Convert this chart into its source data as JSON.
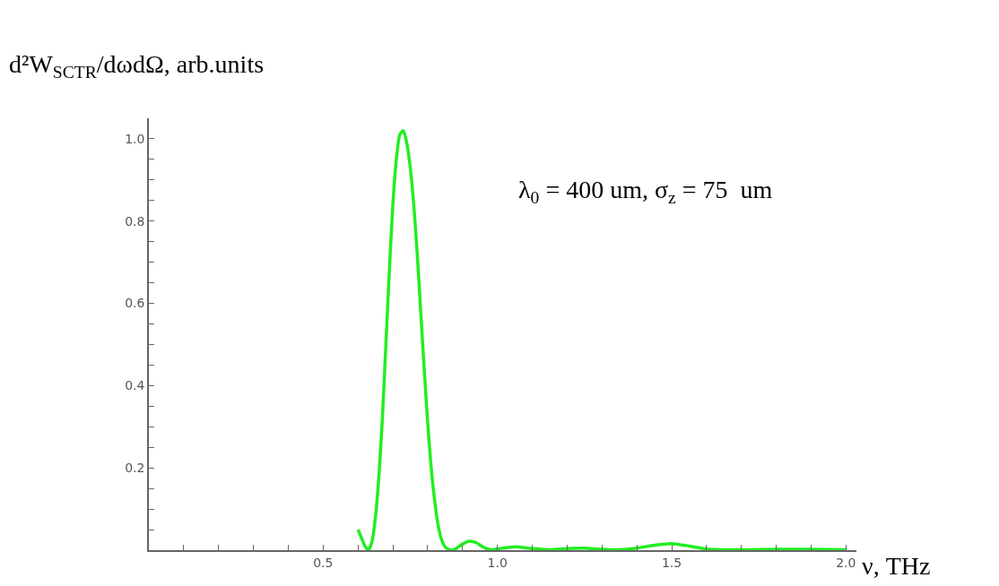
{
  "chart_data": {
    "type": "line",
    "xlabel": "ν, THz",
    "ylabel": "d²W$_{SCTR}$/dωdΩ, arb.units",
    "annotations": [
      "λ$_{0}$ = 400 um, σ$_{z}$ = 75  um"
    ],
    "series": [
      {
        "color": "#22ee22",
        "x": [
          0.6,
          0.61,
          0.62,
          0.63,
          0.64,
          0.65,
          0.66,
          0.67,
          0.68,
          0.69,
          0.7,
          0.71,
          0.72,
          0.73,
          0.74,
          0.75,
          0.76,
          0.77,
          0.78,
          0.79,
          0.8,
          0.81,
          0.82,
          0.83,
          0.84,
          0.85,
          0.86,
          0.87,
          0.88,
          0.9,
          0.92,
          0.94,
          0.96,
          0.98,
          1.0,
          1.05,
          1.1,
          1.15,
          1.2,
          1.25,
          1.3,
          1.35,
          1.4,
          1.45,
          1.5,
          1.55,
          1.6,
          1.7,
          1.8,
          1.9,
          2.0
        ],
        "values": [
          0.05,
          0.03,
          0.01,
          0.0,
          0.02,
          0.08,
          0.18,
          0.32,
          0.5,
          0.68,
          0.84,
          0.95,
          1.01,
          1.02,
          0.99,
          0.93,
          0.84,
          0.72,
          0.58,
          0.44,
          0.31,
          0.2,
          0.12,
          0.06,
          0.025,
          0.008,
          0.002,
          0.0,
          0.003,
          0.015,
          0.022,
          0.018,
          0.007,
          0.001,
          0.003,
          0.008,
          0.004,
          0.001,
          0.004,
          0.005,
          0.002,
          0.001,
          0.005,
          0.012,
          0.016,
          0.01,
          0.003,
          0.001,
          0.002,
          0.002,
          0.001
        ]
      }
    ],
    "xlim": [
      0,
      2.03
    ],
    "ylim": [
      0,
      1.05
    ],
    "xticks": [
      {
        "value": 0.1,
        "label": null
      },
      {
        "value": 0.2,
        "label": null
      },
      {
        "value": 0.3,
        "label": null
      },
      {
        "value": 0.4,
        "label": null
      },
      0.5,
      {
        "value": 0.6,
        "label": null
      },
      {
        "value": 0.7,
        "label": null
      },
      {
        "value": 0.8,
        "label": null
      },
      {
        "value": 0.9,
        "label": null
      },
      {
        "value": 1.0,
        "label": "1.0"
      },
      {
        "value": 1.1,
        "label": null
      },
      {
        "value": 1.2,
        "label": null
      },
      {
        "value": 1.3,
        "label": null
      },
      {
        "value": 1.4,
        "label": null
      },
      1.5,
      {
        "value": 1.6,
        "label": null
      },
      {
        "value": 1.7,
        "label": null
      },
      {
        "value": 1.8,
        "label": null
      },
      {
        "value": 1.9,
        "label": null
      },
      {
        "value": 2.0,
        "label": "2.0"
      }
    ],
    "yticks": [
      {
        "value": 0.05,
        "label": null
      },
      {
        "value": 0.1,
        "label": null
      },
      {
        "value": 0.15,
        "label": null
      },
      0.2,
      {
        "value": 0.25,
        "label": null
      },
      {
        "value": 0.3,
        "label": null
      },
      {
        "value": 0.35,
        "label": null
      },
      0.4,
      {
        "value": 0.45,
        "label": null
      },
      {
        "value": 0.5,
        "label": null
      },
      {
        "value": 0.55,
        "label": null
      },
      0.6,
      {
        "value": 0.65,
        "label": null
      },
      {
        "value": 0.7,
        "label": null
      },
      {
        "value": 0.75,
        "label": null
      },
      0.8,
      {
        "value": 0.85,
        "label": null
      },
      {
        "value": 0.9,
        "label": null
      },
      {
        "value": 0.95,
        "label": null
      },
      {
        "value": 1.0,
        "label": "1.0"
      }
    ],
    "marker": "none",
    "line_style": "solid"
  }
}
